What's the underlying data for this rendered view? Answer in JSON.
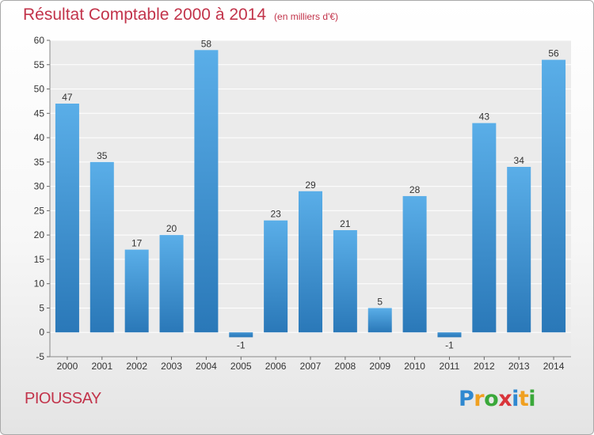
{
  "header": {
    "title": "Résultat Comptable 2000 à 2014",
    "unit_note": "(en milliers d'€)"
  },
  "footer": {
    "commune": "PIOUSSAY",
    "logo_text": "Proxiti"
  },
  "colors": {
    "title": "#c2334a",
    "bar_top": "#5aaee8",
    "bar_bottom": "#2a78b8"
  },
  "chart_data": {
    "type": "bar",
    "title": "Résultat Comptable 2000 à 2014",
    "subtitle": "(en milliers d'€)",
    "xlabel": "",
    "ylabel": "",
    "categories": [
      "2000",
      "2001",
      "2002",
      "2003",
      "2004",
      "2005",
      "2006",
      "2007",
      "2008",
      "2009",
      "2010",
      "2011",
      "2012",
      "2013",
      "2014"
    ],
    "values": [
      47,
      35,
      17,
      20,
      58,
      -1,
      23,
      29,
      21,
      5,
      28,
      -1,
      43,
      34,
      56
    ],
    "data_labels": [
      "47",
      "35",
      "17",
      "20",
      "58",
      "-1",
      "23",
      "29",
      "21",
      "5",
      "28",
      "-1",
      "43",
      "34",
      "56"
    ],
    "ylim": [
      -5,
      60
    ],
    "yticks": [
      -5,
      0,
      5,
      10,
      15,
      20,
      25,
      30,
      35,
      40,
      45,
      50,
      55,
      60
    ],
    "grid": "horizontal",
    "legend": "none"
  }
}
